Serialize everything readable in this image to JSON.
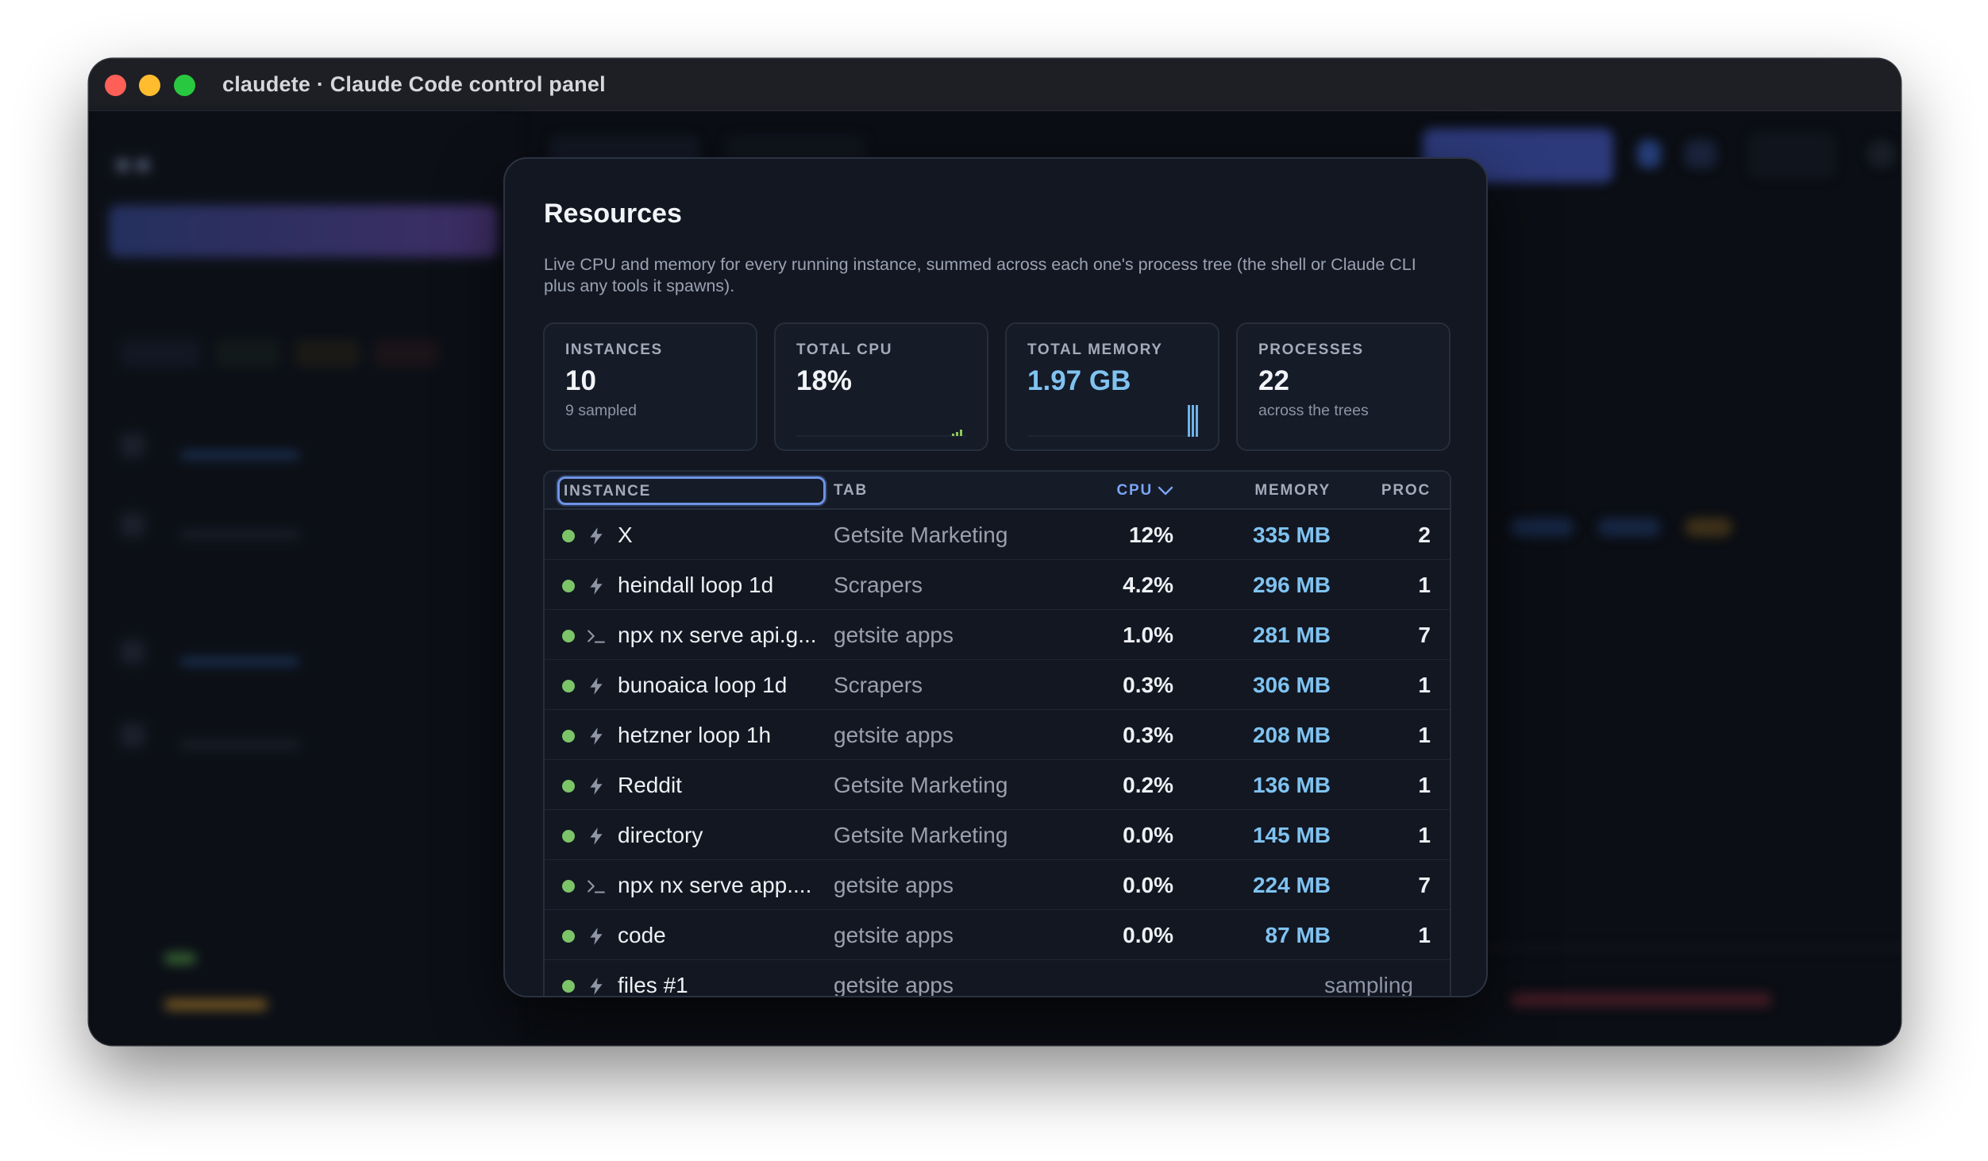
{
  "window": {
    "title": "claudete · Claude Code control panel"
  },
  "colors": {
    "accent_blue": "#7aa4f5",
    "memory_blue": "#7fc3f1",
    "status_green": "#7cc468",
    "modal_bg": "#121722"
  },
  "modal": {
    "title": "Resources",
    "description": "Live CPU and memory for every running instance, summed across each one's process tree (the shell or Claude CLI plus any tools it spawns).",
    "cards": [
      {
        "label": "INSTANCES",
        "value": "10",
        "sub": "9 sampled"
      },
      {
        "label": "TOTAL CPU",
        "value": "18%",
        "sub": ""
      },
      {
        "label": "TOTAL MEMORY",
        "value": "1.97 GB",
        "sub": ""
      },
      {
        "label": "PROCESSES",
        "value": "22",
        "sub": "across the trees"
      }
    ],
    "table": {
      "headers": {
        "instance": "INSTANCE",
        "tab": "TAB",
        "cpu": "CPU",
        "memory": "MEMORY",
        "proc": "PROC"
      },
      "sort_icon": "chevron-down-icon",
      "rows": [
        {
          "icon": "bolt-icon",
          "name": "X",
          "tab": "Getsite Marketing",
          "cpu": "12%",
          "memory": "335 MB",
          "proc": "2"
        },
        {
          "icon": "bolt-icon",
          "name": "heindall loop 1d",
          "tab": "Scrapers",
          "cpu": "4.2%",
          "memory": "296 MB",
          "proc": "1"
        },
        {
          "icon": "terminal-icon",
          "name": "npx nx serve api.g...",
          "tab": "getsite apps",
          "cpu": "1.0%",
          "memory": "281 MB",
          "proc": "7"
        },
        {
          "icon": "bolt-icon",
          "name": "bunoaica loop 1d",
          "tab": "Scrapers",
          "cpu": "0.3%",
          "memory": "306 MB",
          "proc": "1"
        },
        {
          "icon": "bolt-icon",
          "name": "hetzner loop 1h",
          "tab": "getsite apps",
          "cpu": "0.3%",
          "memory": "208 MB",
          "proc": "1"
        },
        {
          "icon": "bolt-icon",
          "name": "Reddit",
          "tab": "Getsite Marketing",
          "cpu": "0.2%",
          "memory": "136 MB",
          "proc": "1"
        },
        {
          "icon": "bolt-icon",
          "name": "directory",
          "tab": "Getsite Marketing",
          "cpu": "0.0%",
          "memory": "145 MB",
          "proc": "1"
        },
        {
          "icon": "terminal-icon",
          "name": "npx nx serve app....",
          "tab": "getsite apps",
          "cpu": "0.0%",
          "memory": "224 MB",
          "proc": "7"
        },
        {
          "icon": "bolt-icon",
          "name": "code",
          "tab": "getsite apps",
          "cpu": "0.0%",
          "memory": "87 MB",
          "proc": "1"
        },
        {
          "icon": "bolt-icon",
          "name": "files #1",
          "tab": "getsite apps",
          "status": "sampling"
        }
      ]
    }
  }
}
